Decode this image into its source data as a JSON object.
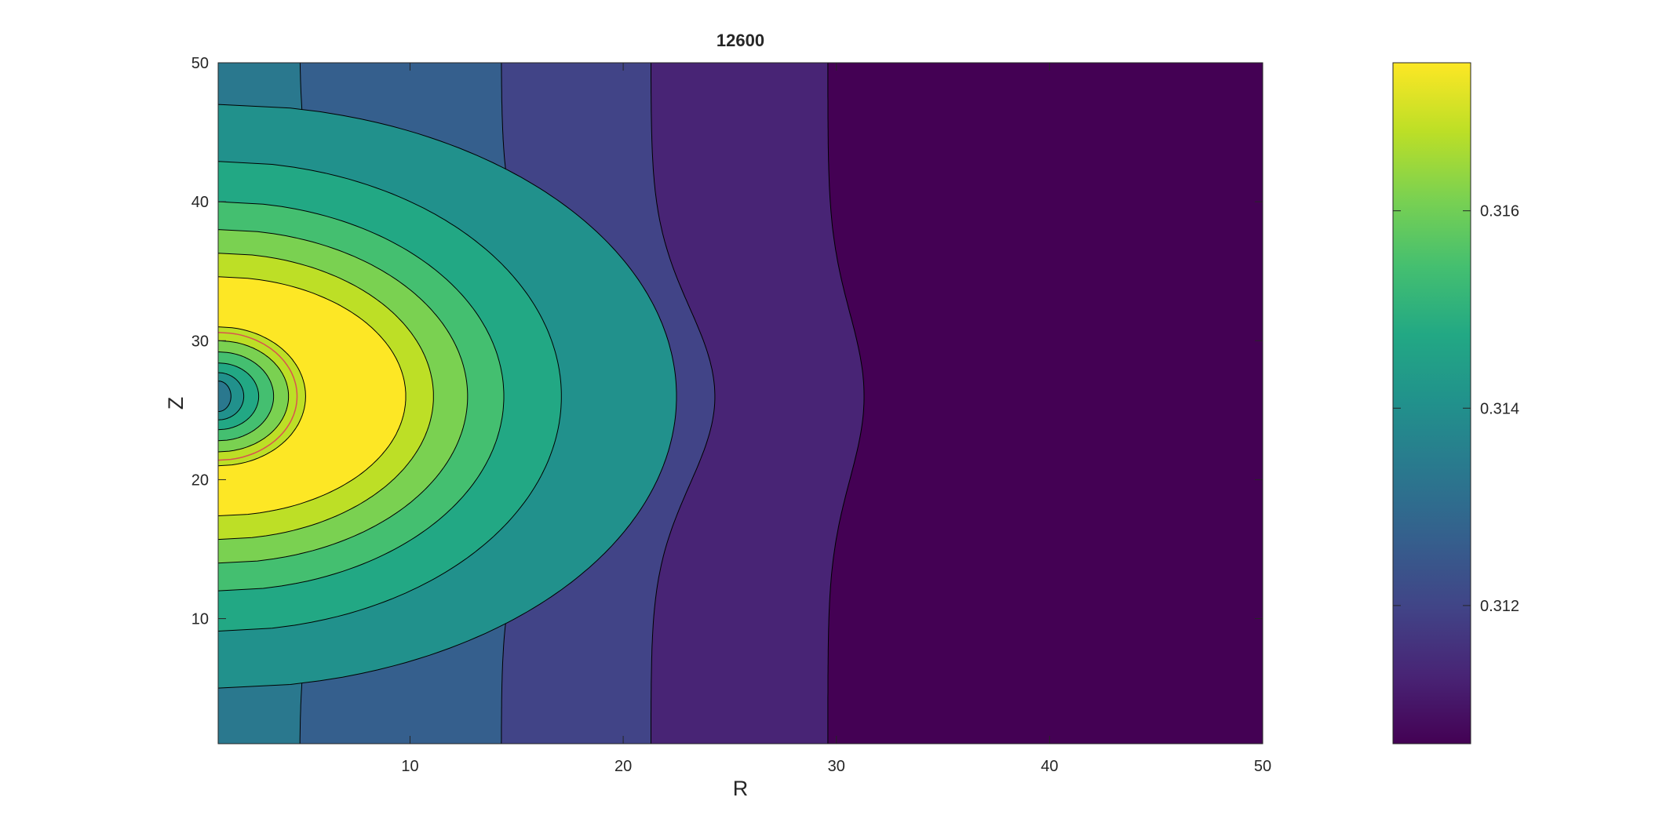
{
  "chart_data": {
    "type": "heatmap",
    "subtype": "filled-contour",
    "title": "12600",
    "xlabel": "R",
    "ylabel": "Z",
    "xlim": [
      1,
      50
    ],
    "ylim": [
      1,
      50
    ],
    "x_ticks": [
      "10",
      "20",
      "30",
      "40",
      "50"
    ],
    "y_ticks": [
      "10",
      "20",
      "30",
      "40",
      "50"
    ],
    "grid": false,
    "colormap": "viridis",
    "colorbar": {
      "position": "right",
      "clim": [
        0.3106,
        0.3175
      ],
      "ticks": [
        "0.312",
        "0.314",
        "0.316"
      ]
    },
    "field": {
      "description": "level of radially symmetric blob centred near R=1, Z=26",
      "peak_ring_level": 0.3175,
      "center_value": 0.3125,
      "far_field_value": 0.3106
    },
    "contour_levels": [
      {
        "level": 0.3106,
        "color": "#440154"
      },
      {
        "level": 0.3113,
        "color": "#482475"
      },
      {
        "level": 0.3121,
        "color": "#414487"
      },
      {
        "level": 0.3129,
        "color": "#355f8d"
      },
      {
        "level": 0.3137,
        "color": "#2a788e"
      },
      {
        "level": 0.3144,
        "color": "#21918c"
      },
      {
        "level": 0.3152,
        "color": "#22a884"
      },
      {
        "level": 0.3159,
        "color": "#44bf70"
      },
      {
        "level": 0.3165,
        "color": "#7ad151"
      },
      {
        "level": 0.317,
        "color": "#bddf26"
      },
      {
        "level": 0.3175,
        "color": "#fde725"
      }
    ],
    "highlight_contour_color": "#d9534f"
  }
}
